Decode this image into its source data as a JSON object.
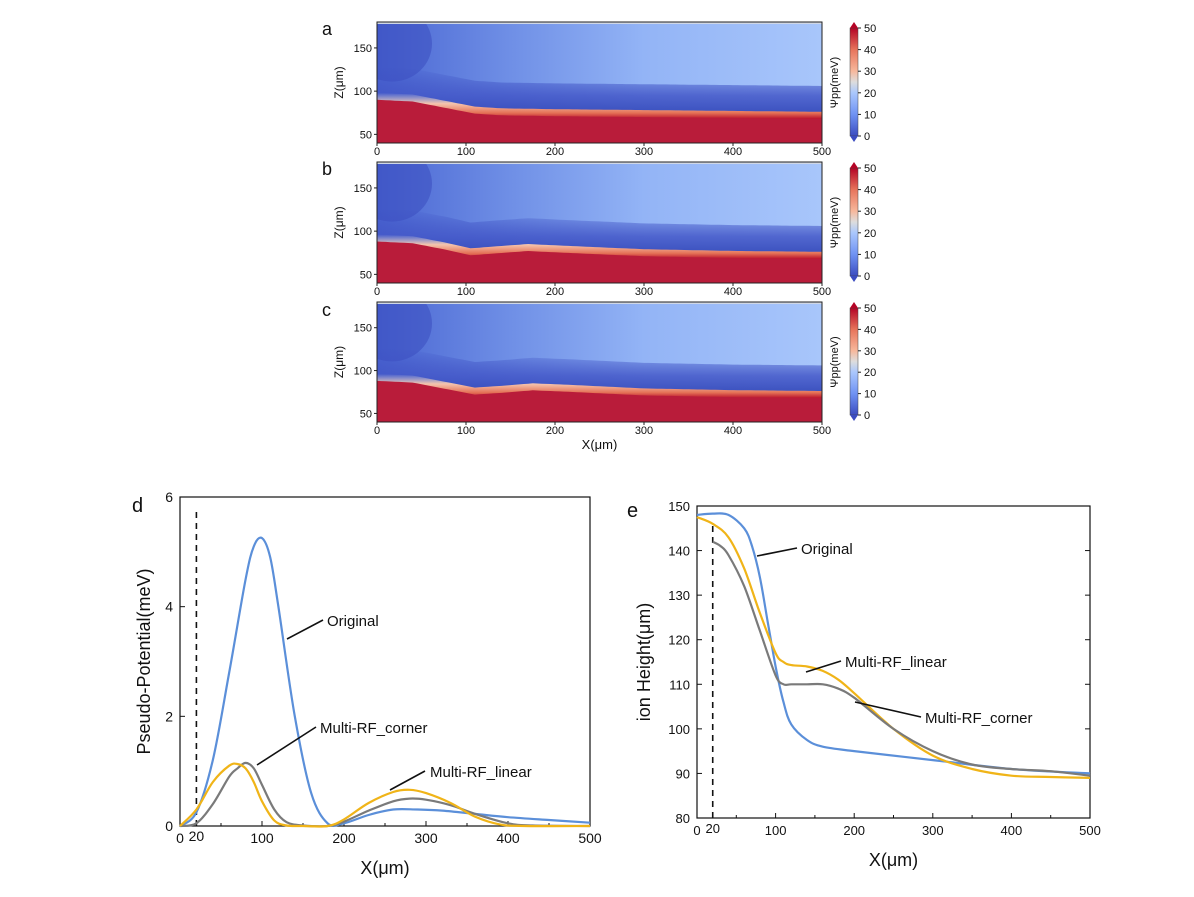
{
  "chart_data": [
    {
      "panel": "a",
      "type": "heatmap",
      "xlabel": "",
      "ylabel": "Z(μm)",
      "xlim": [
        0,
        500
      ],
      "ylim": [
        40,
        180
      ],
      "xticks": [
        0,
        100,
        200,
        300,
        400,
        500
      ],
      "yticks": [
        50,
        100,
        150
      ],
      "colorbar": {
        "label": "Ψpp(meV)",
        "min": 0,
        "max": 50,
        "ticks": [
          0,
          10,
          20,
          30,
          40,
          50
        ]
      },
      "boundary": [
        [
          0,
          90
        ],
        [
          40,
          88
        ],
        [
          80,
          80
        ],
        [
          110,
          74
        ],
        [
          140,
          72
        ],
        [
          200,
          71
        ],
        [
          300,
          70
        ],
        [
          400,
          69
        ],
        [
          500,
          68
        ]
      ]
    },
    {
      "panel": "b",
      "type": "heatmap",
      "xlabel": "",
      "ylabel": "Z(μm)",
      "xlim": [
        0,
        500
      ],
      "ylim": [
        40,
        180
      ],
      "xticks": [
        0,
        100,
        200,
        300,
        400,
        500
      ],
      "yticks": [
        50,
        100,
        150
      ],
      "colorbar": {
        "label": "Ψpp(meV)",
        "min": 0,
        "max": 50,
        "ticks": [
          0,
          10,
          20,
          30,
          40,
          50
        ]
      },
      "boundary": [
        [
          0,
          88
        ],
        [
          40,
          86
        ],
        [
          80,
          78
        ],
        [
          105,
          72
        ],
        [
          130,
          74
        ],
        [
          170,
          77
        ],
        [
          210,
          75
        ],
        [
          300,
          71
        ],
        [
          400,
          69
        ],
        [
          500,
          68
        ]
      ]
    },
    {
      "panel": "c",
      "type": "heatmap",
      "xlabel": "X(μm)",
      "ylabel": "Z(μm)",
      "xlim": [
        0,
        500
      ],
      "ylim": [
        40,
        180
      ],
      "xticks": [
        0,
        100,
        200,
        300,
        400,
        500
      ],
      "yticks": [
        50,
        100,
        150
      ],
      "colorbar": {
        "label": "Ψpp(meV)",
        "min": 0,
        "max": 50,
        "ticks": [
          0,
          10,
          20,
          30,
          40,
          50
        ]
      },
      "boundary": [
        [
          0,
          88
        ],
        [
          40,
          86
        ],
        [
          80,
          78
        ],
        [
          110,
          72
        ],
        [
          140,
          74
        ],
        [
          175,
          77
        ],
        [
          220,
          75
        ],
        [
          300,
          71
        ],
        [
          400,
          69
        ],
        [
          500,
          68
        ]
      ]
    },
    {
      "panel": "d",
      "type": "line",
      "xlabel": "X(μm)",
      "ylabel": "Pseudo-Potential(meV)",
      "xlim": [
        0,
        500
      ],
      "ylim": [
        0,
        6
      ],
      "xticks": [
        0,
        100,
        200,
        300,
        400,
        500
      ],
      "yticks": [
        0,
        2,
        4,
        6
      ],
      "extra_tick": "20",
      "vline": 20,
      "series": [
        {
          "name": "Original",
          "color": "#5b8fd9",
          "x": [
            0,
            20,
            40,
            60,
            80,
            90,
            100,
            110,
            120,
            140,
            160,
            180,
            200,
            230,
            260,
            290,
            320,
            360,
            400,
            450,
            500
          ],
          "y": [
            0,
            0.25,
            1.2,
            2.8,
            4.5,
            5.1,
            5.25,
            4.9,
            4.0,
            2.0,
            0.6,
            0.05,
            0.05,
            0.2,
            0.3,
            0.3,
            0.28,
            0.22,
            0.16,
            0.11,
            0.06
          ]
        },
        {
          "name": "Multi-RF_corner",
          "color": "#7a7a7a",
          "x": [
            0,
            20,
            40,
            60,
            70,
            80,
            90,
            100,
            115,
            130,
            150,
            180,
            200,
            230,
            260,
            280,
            300,
            330,
            360,
            400,
            430,
            500
          ],
          "y": [
            0,
            0.05,
            0.4,
            0.9,
            1.05,
            1.15,
            1.05,
            0.75,
            0.3,
            0.07,
            0.01,
            0,
            0.08,
            0.28,
            0.45,
            0.5,
            0.48,
            0.38,
            0.22,
            0.05,
            0.01,
            0
          ]
        },
        {
          "name": "Multi-RF_linear",
          "color": "#f0b418",
          "x": [
            0,
            20,
            40,
            60,
            70,
            80,
            90,
            100,
            115,
            130,
            150,
            180,
            200,
            230,
            260,
            280,
            300,
            330,
            360,
            390,
            420,
            500
          ],
          "y": [
            0,
            0.3,
            0.8,
            1.1,
            1.13,
            1.05,
            0.8,
            0.45,
            0.1,
            0.01,
            0,
            0,
            0.12,
            0.42,
            0.62,
            0.66,
            0.6,
            0.42,
            0.17,
            0.03,
            0,
            0
          ]
        }
      ],
      "annotations": [
        "Original",
        "Multi-RF_corner",
        "Multi-RF_linear"
      ]
    },
    {
      "panel": "e",
      "type": "line",
      "xlabel": "X(μm)",
      "ylabel": "ion Height(μm)",
      "xlim": [
        0,
        500
      ],
      "ylim": [
        80,
        150
      ],
      "xticks": [
        0,
        100,
        200,
        300,
        400,
        500
      ],
      "yticks": [
        80,
        90,
        100,
        110,
        120,
        130,
        140,
        150
      ],
      "extra_tick": "20",
      "vline": 20,
      "series": [
        {
          "name": "Original",
          "color": "#5b8fd9",
          "x": [
            0,
            20,
            40,
            60,
            70,
            80,
            90,
            100,
            110,
            120,
            140,
            160,
            200,
            300,
            400,
            500
          ],
          "y": [
            148,
            148.3,
            148,
            145,
            141,
            134,
            124,
            114,
            106,
            101,
            97.5,
            96,
            95,
            93,
            91,
            90
          ]
        },
        {
          "name": "Multi-RF_linear",
          "color": "#f0b418",
          "x": [
            0,
            20,
            40,
            60,
            80,
            100,
            110,
            120,
            140,
            160,
            180,
            200,
            250,
            300,
            350,
            400,
            450,
            500
          ],
          "y": [
            147.5,
            146,
            143,
            136,
            126,
            117,
            115,
            114.3,
            114,
            113,
            111,
            108,
            100,
            94,
            91,
            89.5,
            89.2,
            89
          ]
        },
        {
          "name": "Multi-RF_corner",
          "color": "#7a7a7a",
          "x": [
            20,
            30,
            40,
            60,
            80,
            100,
            110,
            120,
            140,
            160,
            180,
            200,
            250,
            300,
            350,
            400,
            450,
            500
          ],
          "y": [
            142,
            141,
            139,
            132,
            122,
            112,
            110,
            110,
            110,
            110,
            109,
            107,
            100,
            95,
            92,
            91,
            90.5,
            89.5
          ]
        }
      ],
      "annotations": [
        "Original",
        "Multi-RF_linear",
        "Multi-RF_corner"
      ]
    }
  ]
}
